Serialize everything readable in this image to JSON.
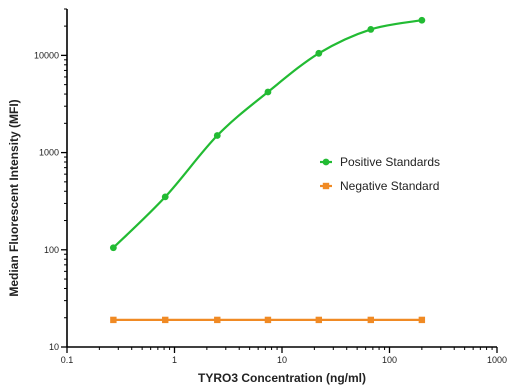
{
  "chart_data": {
    "type": "scatter",
    "title": "",
    "xlabel": "TYRO3 Concentration (ng/ml)",
    "ylabel": "Median Fluorescent Intensity (MFI)",
    "xscale": "log",
    "yscale": "log",
    "xlim": [
      0.1,
      1000
    ],
    "ylim": [
      10,
      30000
    ],
    "x_ticks": [
      {
        "value": 0.1,
        "label": "0.1"
      },
      {
        "value": 1,
        "label": "1"
      },
      {
        "value": 10,
        "label": "10"
      },
      {
        "value": 100,
        "label": "100"
      },
      {
        "value": 1000,
        "label": "1000"
      }
    ],
    "y_ticks": [
      {
        "value": 10,
        "label": "10"
      },
      {
        "value": 100,
        "label": "100"
      },
      {
        "value": 1000,
        "label": "1000"
      },
      {
        "value": 10000,
        "label": "10000"
      }
    ],
    "grid": false,
    "legend_position": "right",
    "series": [
      {
        "name": "Positive Standards",
        "color": "#22bb33",
        "marker": "circle",
        "fit": "curve",
        "x": [
          0.27,
          0.82,
          2.5,
          7.4,
          22,
          67,
          200
        ],
        "y": [
          105,
          350,
          1500,
          4200,
          10500,
          18500,
          23000
        ]
      },
      {
        "name": "Negative Standard",
        "color": "#f08a24",
        "marker": "square",
        "fit": "line",
        "x": [
          0.27,
          0.82,
          2.5,
          7.4,
          22,
          67,
          200
        ],
        "y": [
          19,
          19,
          19,
          19,
          19,
          19,
          19
        ]
      }
    ]
  }
}
